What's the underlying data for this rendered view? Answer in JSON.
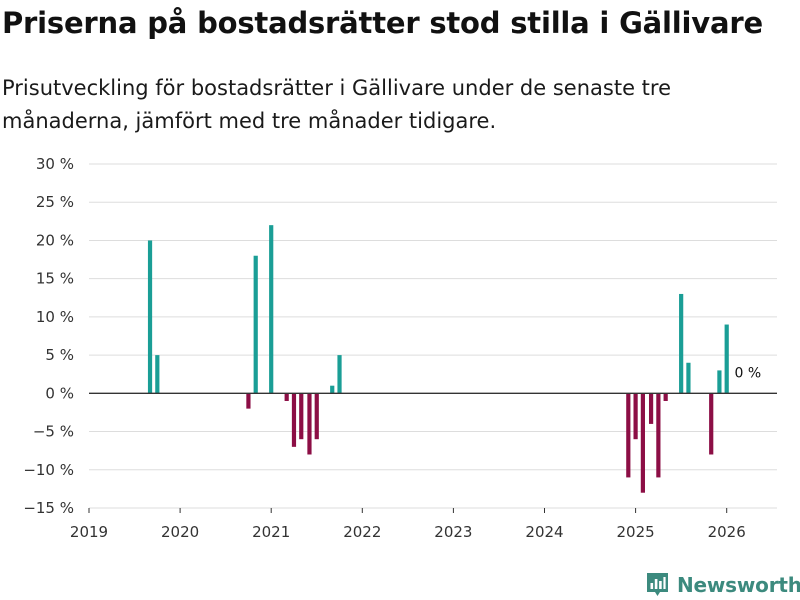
{
  "header": {
    "title": "Priserna på bostadsrätter stod stilla i Gällivare",
    "subtitle": "Prisutveckling för bostadsrätter i Gällivare under de senaste tre månaderna, jämfört med tre månader tidigare."
  },
  "brand": {
    "name": "Newsworthy",
    "icon": "newsworthy-logo-icon"
  },
  "colors": {
    "positive": "#1a9e96",
    "negative": "#8c0e45",
    "grid": "#dddddd",
    "zero_line": "#333333",
    "brand": "#3c8a7e"
  },
  "chart_data": {
    "type": "bar",
    "title": "Priserna på bostadsrätter stod stilla i Gällivare",
    "xlabel": "",
    "ylabel": "",
    "unit": "%",
    "ylim": [
      -15,
      30
    ],
    "yticks": [
      30,
      25,
      20,
      15,
      10,
      5,
      0,
      -5,
      -10,
      -15
    ],
    "ytick_labels": [
      "30 %",
      "25 %",
      "20 %",
      "15 %",
      "10 %",
      "5 %",
      "0 %",
      "−5 %",
      "−10 %",
      "−15 %"
    ],
    "xlim": [
      2019.0,
      2026.55
    ],
    "xticks": [
      2019,
      2020,
      2021,
      2022,
      2023,
      2024,
      2025,
      2026
    ],
    "xtick_labels": [
      "2019",
      "2020",
      "2021",
      "2022",
      "2023",
      "2024",
      "2025",
      "2026"
    ],
    "grid": true,
    "series": [
      {
        "name": "Prisutveckling",
        "points": [
          {
            "x": 2019.67,
            "value": 20
          },
          {
            "x": 2019.75,
            "value": 5
          },
          {
            "x": 2020.75,
            "value": -2
          },
          {
            "x": 2020.83,
            "value": 18
          },
          {
            "x": 2021.0,
            "value": 22
          },
          {
            "x": 2021.17,
            "value": -1
          },
          {
            "x": 2021.25,
            "value": -7
          },
          {
            "x": 2021.33,
            "value": -6
          },
          {
            "x": 2021.42,
            "value": -8
          },
          {
            "x": 2021.5,
            "value": -6
          },
          {
            "x": 2021.67,
            "value": 1
          },
          {
            "x": 2021.75,
            "value": 5
          },
          {
            "x": 2024.92,
            "value": -11
          },
          {
            "x": 2025.0,
            "value": -6
          },
          {
            "x": 2025.08,
            "value": -13
          },
          {
            "x": 2025.17,
            "value": -4
          },
          {
            "x": 2025.25,
            "value": -11
          },
          {
            "x": 2025.33,
            "value": -1
          },
          {
            "x": 2025.5,
            "value": 13
          },
          {
            "x": 2025.58,
            "value": 4
          },
          {
            "x": 2025.83,
            "value": -8
          },
          {
            "x": 2025.92,
            "value": 3
          },
          {
            "x": 2026.0,
            "value": 9
          },
          {
            "x": 2026.08,
            "value": 0
          }
        ]
      }
    ],
    "annotations": [
      {
        "x": 2026.08,
        "value": 0,
        "text": "0 %"
      }
    ]
  }
}
